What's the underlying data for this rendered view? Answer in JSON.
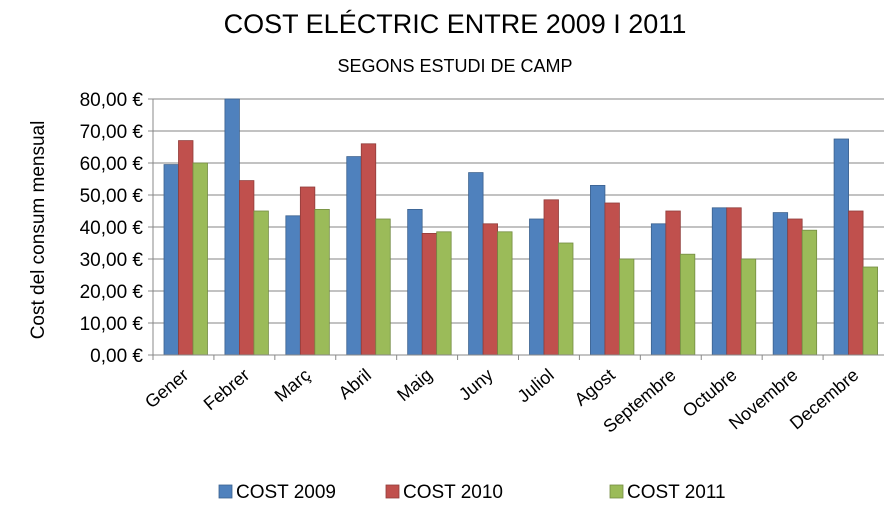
{
  "chart_data": {
    "type": "bar",
    "title": "COST ELÉCTRIC ENTRE 2009 I 2011",
    "subtitle": "SEGONS ESTUDI DE CAMP",
    "xlabel": "",
    "ylabel": "Cost del consum mensual",
    "ylim": [
      0,
      80
    ],
    "ytick_labels": [
      "0,00 €",
      "10,00 €",
      "20,00 €",
      "30,00 €",
      "40,00 €",
      "50,00 €",
      "60,00 €",
      "70,00 €",
      "80,00 €"
    ],
    "categories": [
      "Gener",
      "Febrer",
      "Març",
      "Abril",
      "Maig",
      "Juny",
      "Juliol",
      "Agost",
      "Septembre",
      "Octubre",
      "Novembre",
      "Decembre"
    ],
    "series": [
      {
        "name": "COST 2009",
        "color": "#4F81BD",
        "values": [
          59.5,
          80,
          43.5,
          62,
          45.5,
          57,
          42.5,
          53,
          41,
          46,
          44.5,
          67.5
        ]
      },
      {
        "name": "COST 2010",
        "color": "#C0504D",
        "values": [
          67,
          54.5,
          52.5,
          66,
          38,
          41,
          48.5,
          47.5,
          45,
          46,
          42.5,
          45
        ]
      },
      {
        "name": "COST 2011",
        "color": "#9BBB59",
        "values": [
          60,
          45,
          45.5,
          42.5,
          38.5,
          38.5,
          35,
          30,
          31.5,
          30,
          39,
          27.5
        ]
      }
    ],
    "grid": true,
    "legend_position": "bottom"
  }
}
